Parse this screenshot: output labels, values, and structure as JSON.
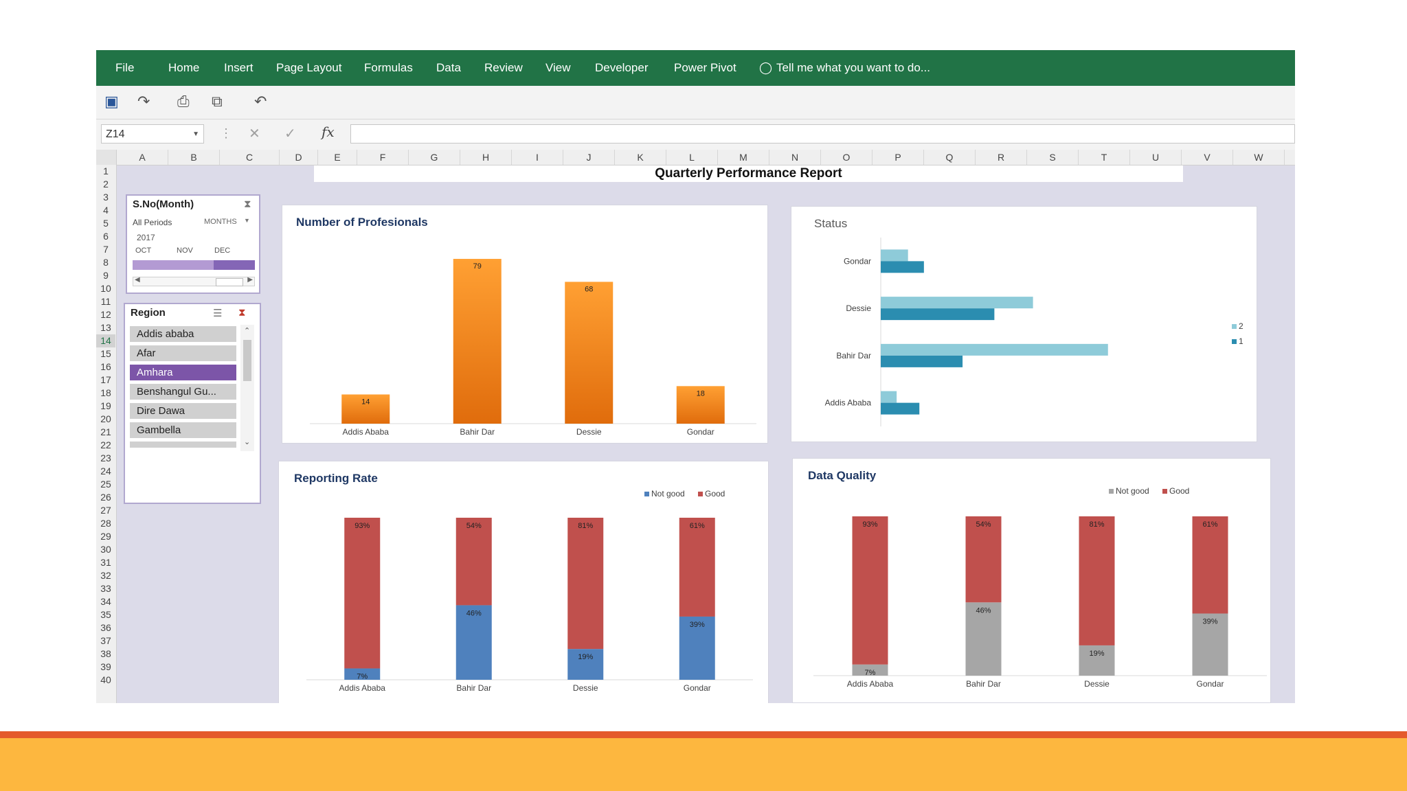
{
  "ribbon": {
    "tabs": [
      "File",
      "Home",
      "Insert",
      "Page Layout",
      "Formulas",
      "Data",
      "Review",
      "View",
      "Developer",
      "Power Pivot"
    ],
    "tell_me": "Tell me what you want to do..."
  },
  "formula_bar": {
    "name_box": "Z14",
    "fx": "fx",
    "value": ""
  },
  "sheet": {
    "columns": [
      "A",
      "B",
      "C",
      "D",
      "E",
      "F",
      "G",
      "H",
      "I",
      "J",
      "K",
      "L",
      "M",
      "N",
      "O",
      "P",
      "Q",
      "R",
      "S",
      "T",
      "U",
      "V",
      "W"
    ],
    "rows": [
      "1",
      "2",
      "3",
      "4",
      "5",
      "6",
      "7",
      "8",
      "9",
      "10",
      "11",
      "12",
      "13",
      "14",
      "15",
      "16",
      "17",
      "18",
      "19",
      "20",
      "21",
      "22",
      "23",
      "24",
      "25",
      "26",
      "27",
      "28",
      "29",
      "30",
      "31",
      "32",
      "33",
      "34",
      "35",
      "36",
      "37",
      "38",
      "39",
      "40"
    ],
    "selected_row": "14"
  },
  "report": {
    "title": "Quarterly  Performance Report"
  },
  "month_slicer": {
    "title": "S.No(Month)",
    "periods_label": "All Periods",
    "unit_label": "MONTHS",
    "year": "2017",
    "months": [
      "OCT",
      "NOV",
      "DEC"
    ]
  },
  "region_slicer": {
    "title": "Region",
    "items": [
      "Addis ababa",
      "Afar",
      "Amhara",
      "Benshangul Gu...",
      "Dire Dawa",
      "Gambella"
    ],
    "selected": "Amhara"
  },
  "colors": {
    "ribbon": "#217346",
    "orange": "#f58a1f",
    "teal_light": "#8ecbd9",
    "teal_dark": "#2b8db0",
    "blue": "#4f81bd",
    "red": "#c0504d",
    "gray": "#a6a6a6",
    "slicer_selected": "#7c55a8"
  },
  "chart_data": [
    {
      "id": "professionals",
      "type": "bar",
      "title": "Number of Profesionals",
      "categories": [
        "Addis Ababa",
        "Bahir Dar",
        "Dessie",
        "Gondar"
      ],
      "values": [
        14,
        79,
        68,
        18
      ],
      "ylim": [
        0,
        80
      ],
      "grid": false
    },
    {
      "id": "status",
      "type": "bar",
      "orientation": "horizontal",
      "title": "Status",
      "categories": [
        "Gondar",
        "Dessie",
        "Bahir Dar",
        "Addis Ababa"
      ],
      "series": [
        {
          "name": "2",
          "values": [
            12,
            67,
            100,
            7
          ]
        },
        {
          "name": "1",
          "values": [
            19,
            50,
            36,
            17
          ]
        }
      ],
      "xlim": [
        0,
        130
      ],
      "legend": "right"
    },
    {
      "id": "reporting_rate",
      "type": "bar",
      "stacked": true,
      "title": "Reporting Rate",
      "categories": [
        "Addis Ababa",
        "Bahir Dar",
        "Dessie",
        "Gondar"
      ],
      "series": [
        {
          "name": "Not good",
          "values": [
            7,
            46,
            19,
            39
          ]
        },
        {
          "name": "Good",
          "values": [
            93,
            54,
            81,
            61
          ]
        }
      ],
      "labels": {
        "Not good": [
          "7%",
          "46%",
          "19%",
          "39%"
        ],
        "Good": [
          "93%",
          "54%",
          "81%",
          "61%"
        ]
      },
      "ylim": [
        0,
        100
      ],
      "legend": "top-right"
    },
    {
      "id": "data_quality",
      "type": "bar",
      "stacked": true,
      "title": "Data Quality",
      "categories": [
        "Addis Ababa",
        "Bahir Dar",
        "Dessie",
        "Gondar"
      ],
      "series": [
        {
          "name": "Not good",
          "values": [
            7,
            46,
            19,
            39
          ]
        },
        {
          "name": "Good",
          "values": [
            93,
            54,
            81,
            61
          ]
        }
      ],
      "labels": {
        "Not good": [
          "7%",
          "46%",
          "19%",
          "39%"
        ],
        "Good": [
          "93%",
          "54%",
          "81%",
          "61%"
        ]
      },
      "ylim": [
        0,
        100
      ],
      "legend": "top-right"
    }
  ]
}
